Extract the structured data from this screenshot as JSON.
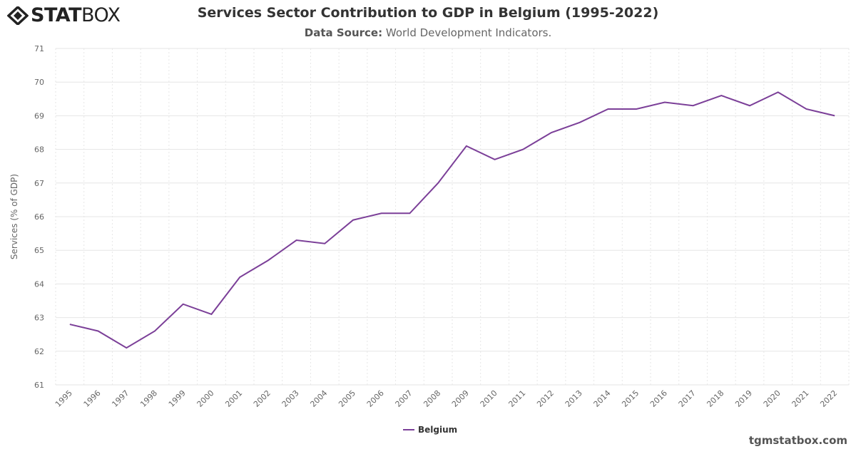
{
  "logo": {
    "text_bold": "STAT",
    "text_light": "BOX"
  },
  "header": {
    "title": "Services Sector Contribution to GDP in Belgium (1995-2022)",
    "source_label": "Data Source:",
    "source_value": "World Development Indicators."
  },
  "footer": {
    "site": "tgmstatbox.com"
  },
  "chart_data": {
    "type": "line",
    "title": "Services Sector Contribution to GDP in Belgium (1995-2022)",
    "xlabel": "",
    "ylabel": "Services (% of GDP)",
    "ylim": [
      61,
      71
    ],
    "yticks": [
      61,
      62,
      63,
      64,
      65,
      66,
      67,
      68,
      69,
      70,
      71
    ],
    "categories": [
      "1995",
      "1996",
      "1997",
      "1998",
      "1999",
      "2000",
      "2001",
      "2002",
      "2003",
      "2004",
      "2005",
      "2006",
      "2007",
      "2008",
      "2009",
      "2010",
      "2011",
      "2012",
      "2013",
      "2014",
      "2015",
      "2016",
      "2017",
      "2018",
      "2019",
      "2020",
      "2021",
      "2022"
    ],
    "series": [
      {
        "name": "Belgium",
        "color": "#7b3f98",
        "values": [
          62.8,
          62.6,
          62.1,
          62.6,
          63.4,
          63.1,
          64.2,
          64.7,
          65.3,
          65.2,
          65.9,
          66.1,
          66.1,
          67.0,
          68.1,
          67.7,
          68.0,
          68.5,
          68.8,
          69.2,
          69.2,
          69.4,
          69.3,
          69.6,
          69.3,
          69.7,
          69.2,
          69.0
        ]
      }
    ],
    "grid": true,
    "legend": "bottom-center"
  }
}
